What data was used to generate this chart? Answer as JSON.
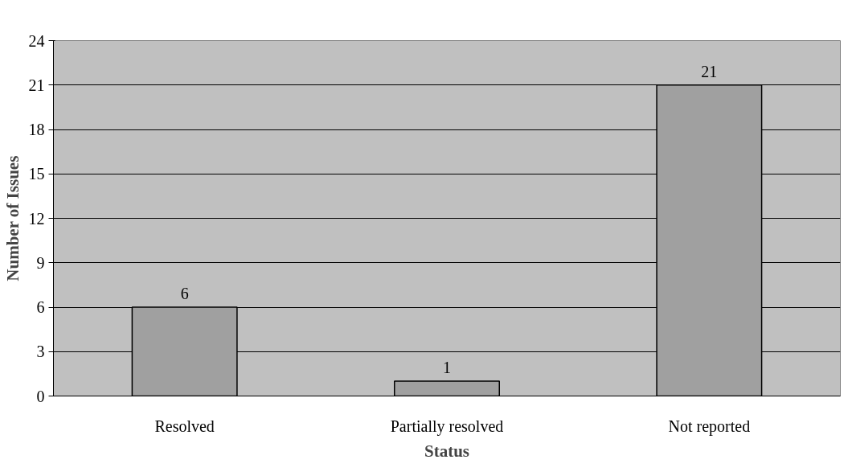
{
  "chart_data": {
    "type": "bar",
    "xlabel": "Status",
    "ylabel": "Number of Issues",
    "categories": [
      "Resolved",
      "Partially resolved",
      "Not reported"
    ],
    "values": [
      6,
      1,
      21
    ],
    "color": "#a0a0a0",
    "ylim": [
      0,
      24
    ],
    "yticks": [
      0,
      3,
      6,
      9,
      12,
      15,
      18,
      21,
      24
    ],
    "grid": "y",
    "data_labels": true
  }
}
